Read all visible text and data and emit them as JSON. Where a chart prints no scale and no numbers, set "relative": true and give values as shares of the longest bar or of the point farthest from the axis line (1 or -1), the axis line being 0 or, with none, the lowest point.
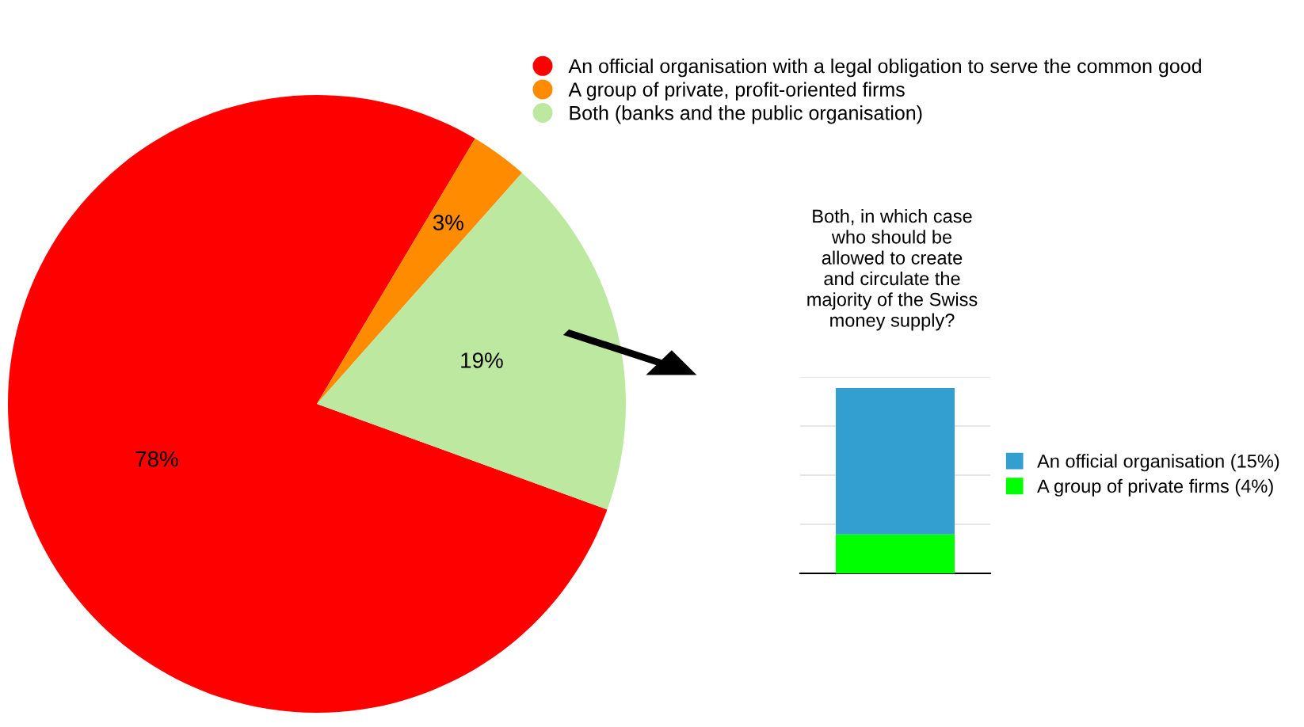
{
  "chart_data": [
    {
      "type": "pie",
      "categories": [
        "An official organisation with a legal obligation to serve the common good",
        "A group of private, profit-oriented firms",
        "Both (banks and the public organisation)"
      ],
      "values": [
        78,
        3,
        19
      ],
      "value_labels": [
        "78%",
        "3%",
        "19%"
      ],
      "colors": [
        "#ff0000",
        "#ff8c00",
        "#bde8a0"
      ],
      "legend": "top right"
    },
    {
      "type": "bar",
      "relative": true,
      "title": "Both, in which case\nwho should be\nallowed to create\nand circulate the\nmajority of the Swiss\nmoney supply?",
      "stacked": true,
      "categories": [
        null
      ],
      "series": [
        {
          "name": "A group of private firms (4%)",
          "color": "#00ff00",
          "values": [
            0.21
          ]
        },
        {
          "name": "An official organisation (15%)",
          "color": "#339fd0",
          "values": [
            0.79
          ]
        }
      ],
      "grid": "y",
      "legend": "right"
    }
  ]
}
